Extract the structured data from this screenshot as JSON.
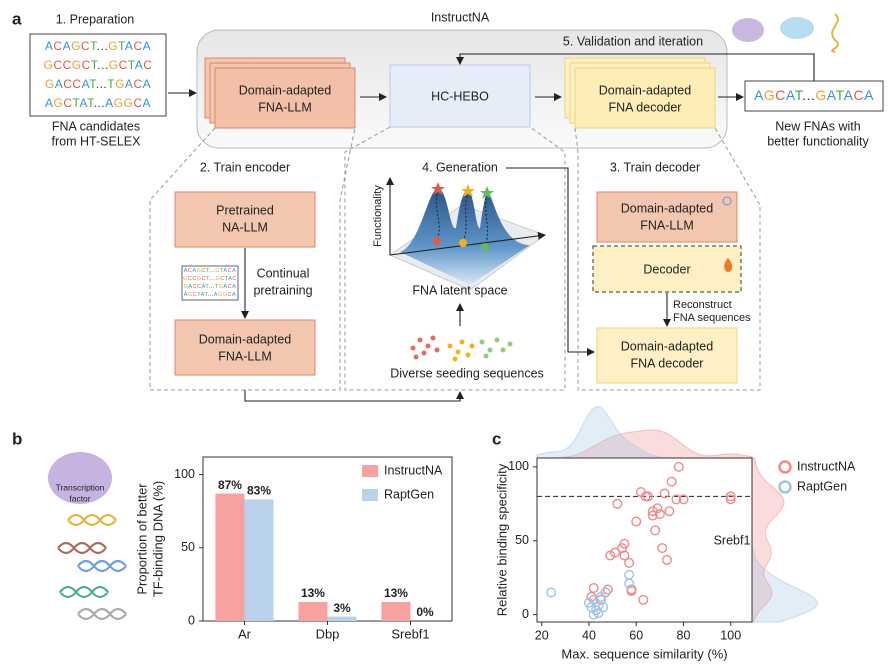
{
  "figure": {
    "panel_a": {
      "label": "a",
      "framework": "InstructNA",
      "preparation": {
        "title": "1. Preparation",
        "sequences": [
          "ACAGCT...GTACA",
          "GCCGCT...GCTAC",
          "GACCAT...TGACA",
          "AGCTAT...AGGCA"
        ],
        "caption": [
          "FNA candidates",
          "from HT-SELEX"
        ]
      },
      "encoder": [
        "Domain-adapted",
        "FNA-LLM"
      ],
      "optimizer": "HC-HEBO",
      "decoder": [
        "Domain-adapted",
        "FNA decoder"
      ],
      "validation": "5. Validation and iteration",
      "output": {
        "sequence": "AGCAT...GATACA",
        "caption": [
          "New FNAs with",
          "better functionality"
        ]
      },
      "train_encoder": {
        "title": "2. Train encoder",
        "pretrained": [
          "Pretrained",
          "NA-LLM"
        ],
        "step": [
          "Continual",
          "pretraining"
        ],
        "result": [
          "Domain-adapted",
          "FNA-LLM"
        ]
      },
      "generation": {
        "title": "4. Generation",
        "y_axis": "Functionality",
        "x_axis": "FNA latent space",
        "seeds": "Diverse seeding sequences"
      },
      "train_decoder": {
        "title": "3. Train decoder",
        "encoder": [
          "Domain-adapted",
          "FNA-LLM"
        ],
        "decoder": "Decoder",
        "step": [
          "Reconstruct",
          "FNA sequences"
        ],
        "result": [
          "Domain-adapted",
          "FNA decoder"
        ]
      }
    },
    "panel_b": {
      "label": "b",
      "icon": [
        "Transcription",
        "factor"
      ]
    },
    "panel_c": {
      "label": "c"
    }
  },
  "chart_data": [
    {
      "type": "bar",
      "ylabel": [
        "Proportion of better",
        "TF-binding DNA (%)"
      ],
      "categories": [
        "Ar",
        "Dbp",
        "Srebf1"
      ],
      "series": [
        {
          "name": "InstructNA",
          "color": "#f7a1a1",
          "values": [
            87,
            13,
            13
          ],
          "value_labels": [
            "87%",
            "13%",
            "13%"
          ]
        },
        {
          "name": "RaptGen",
          "color": "#b9d1ea",
          "values": [
            83,
            3,
            0
          ],
          "value_labels": [
            "83%",
            "3%",
            "0%"
          ]
        }
      ],
      "ylim": [
        0,
        112
      ],
      "yticks": [
        0,
        50,
        100
      ],
      "legend": "upper right"
    },
    {
      "type": "scatter",
      "xlabel": "Max. sequence similarity (%)",
      "ylabel": "Relative binding specificity",
      "series": [
        {
          "name": "InstructNA",
          "color": "#ef8a8a",
          "x": [
            42,
            41,
            45,
            48,
            47,
            49,
            51,
            52,
            54,
            55,
            55,
            57,
            58,
            58,
            60,
            62,
            63,
            64,
            65,
            67,
            67,
            68,
            69,
            70,
            71,
            72,
            73,
            74,
            75,
            77,
            78,
            80,
            100,
            100
          ],
          "y": [
            18,
            12,
            10,
            17,
            15,
            40,
            42,
            75,
            45,
            48,
            40,
            35,
            16,
            17,
            63,
            83,
            10,
            80,
            80,
            70,
            67,
            57,
            72,
            68,
            45,
            82,
            37,
            70,
            90,
            78,
            100,
            78,
            80,
            78
          ]
        },
        {
          "name": "RaptGen",
          "color": "#9fc3e4",
          "x": [
            24,
            40,
            41,
            42,
            43,
            44,
            44,
            45,
            46,
            47,
            57,
            57,
            42
          ],
          "y": [
            15,
            8,
            5,
            10,
            3,
            1,
            6,
            12,
            5,
            15,
            27,
            21,
            0
          ]
        }
      ],
      "xlim": [
        18,
        109
      ],
      "ylim": [
        -5,
        106
      ],
      "xticks": [
        20,
        40,
        60,
        80,
        100
      ],
      "yticks": [
        0,
        50,
        100
      ],
      "hline": 80,
      "annotation": "Srebf1",
      "legend": "right",
      "marginals": true
    }
  ]
}
